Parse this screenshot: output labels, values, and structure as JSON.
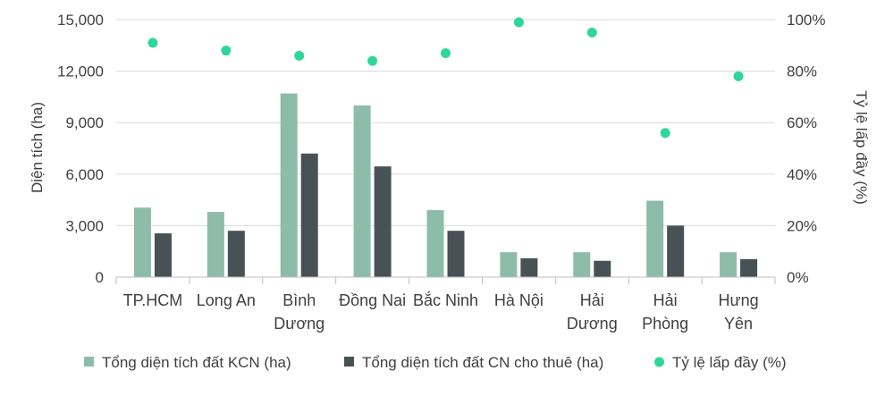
{
  "chart_data": {
    "type": "bar",
    "categories": [
      [
        "TP.HCM"
      ],
      [
        "Long An"
      ],
      [
        "Bình",
        "Dương"
      ],
      [
        "Đồng Nai"
      ],
      [
        "Bắc Ninh"
      ],
      [
        "Hà Nội"
      ],
      [
        "Hải",
        "Dương"
      ],
      [
        "Hải",
        "Phòng"
      ],
      [
        "Hưng",
        "Yên"
      ]
    ],
    "series": [
      {
        "name": "Tổng diện tích đất KCN (ha)",
        "type": "bar",
        "axis": "left",
        "color": "#8dbcaa",
        "values": [
          4050,
          3800,
          10700,
          10000,
          3900,
          1450,
          1450,
          4450,
          1450
        ]
      },
      {
        "name": "Tổng diện tích đất CN cho thuê (ha)",
        "type": "bar",
        "axis": "left",
        "color": "#485256",
        "values": [
          2550,
          2700,
          7200,
          6450,
          2700,
          1100,
          950,
          3000,
          1050
        ]
      },
      {
        "name": "Tỷ lệ lấp đầy (%)",
        "type": "scatter",
        "axis": "right",
        "color": "#2fd69a",
        "values": [
          91,
          88,
          86,
          84,
          87,
          99,
          95,
          56,
          78
        ]
      }
    ],
    "ylabel": "Diện tích (ha)",
    "y2label": "Tỷ lệ lấp đầy (%)",
    "ylim": [
      0,
      15000
    ],
    "y2lim": [
      0,
      100
    ],
    "yticks": [
      "0",
      "3,000",
      "6,000",
      "9,000",
      "12,000",
      "15,000"
    ],
    "y2ticks": [
      "0%",
      "20%",
      "40%",
      "60%",
      "80%",
      "100%"
    ],
    "legend_position": "bottom",
    "grid": "horizontal",
    "colors": {
      "text": "#404040",
      "grid": "#d9d9d9",
      "axis": "#bfbfbf"
    }
  }
}
